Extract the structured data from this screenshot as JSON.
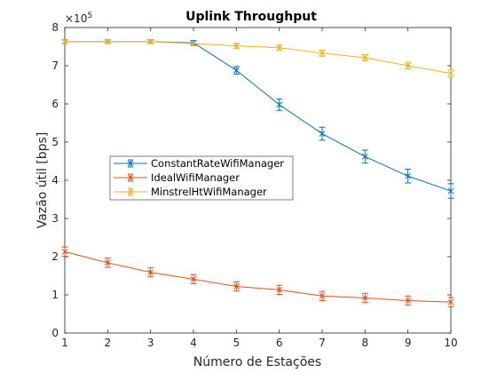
{
  "chart_data": {
    "type": "line",
    "title": "Uplink Throughput",
    "xlabel": "Número de Estações",
    "ylabel": "Vazão útil [bps]",
    "y_exponent_base": "×10",
    "y_exponent_power": "5",
    "x": [
      1,
      2,
      3,
      4,
      5,
      6,
      7,
      8,
      9,
      10
    ],
    "xlim": [
      1,
      10
    ],
    "ylim": [
      0,
      8
    ],
    "x_ticks": [
      "1",
      "2",
      "3",
      "4",
      "5",
      "6",
      "7",
      "8",
      "9",
      "10"
    ],
    "y_ticks": [
      "0",
      "1",
      "2",
      "3",
      "4",
      "5",
      "6",
      "7",
      "8"
    ],
    "y_scale_note": "values in units of 1e5 bps",
    "grid": false,
    "legend_position": "center-left",
    "series": [
      {
        "name": "ConstantRateWifiManager",
        "color": "#0072BD",
        "values": [
          7.63,
          7.63,
          7.63,
          7.6,
          6.88,
          5.98,
          5.22,
          4.62,
          4.11,
          3.72
        ],
        "errors": [
          0.05,
          0.05,
          0.05,
          0.06,
          0.1,
          0.15,
          0.17,
          0.17,
          0.18,
          0.19
        ]
      },
      {
        "name": "IdealWifiManager",
        "color": "#D95319",
        "values": [
          2.13,
          1.84,
          1.59,
          1.41,
          1.22,
          1.13,
          0.97,
          0.92,
          0.85,
          0.81
        ],
        "errors": [
          0.12,
          0.12,
          0.12,
          0.12,
          0.12,
          0.12,
          0.12,
          0.12,
          0.12,
          0.12
        ]
      },
      {
        "name": "MinstrelHtWifiManager",
        "color": "#EDB120",
        "values": [
          7.63,
          7.63,
          7.63,
          7.58,
          7.52,
          7.47,
          7.33,
          7.21,
          7.0,
          6.8
        ],
        "errors": [
          0.05,
          0.05,
          0.05,
          0.06,
          0.07,
          0.07,
          0.08,
          0.08,
          0.09,
          0.1
        ]
      }
    ]
  }
}
